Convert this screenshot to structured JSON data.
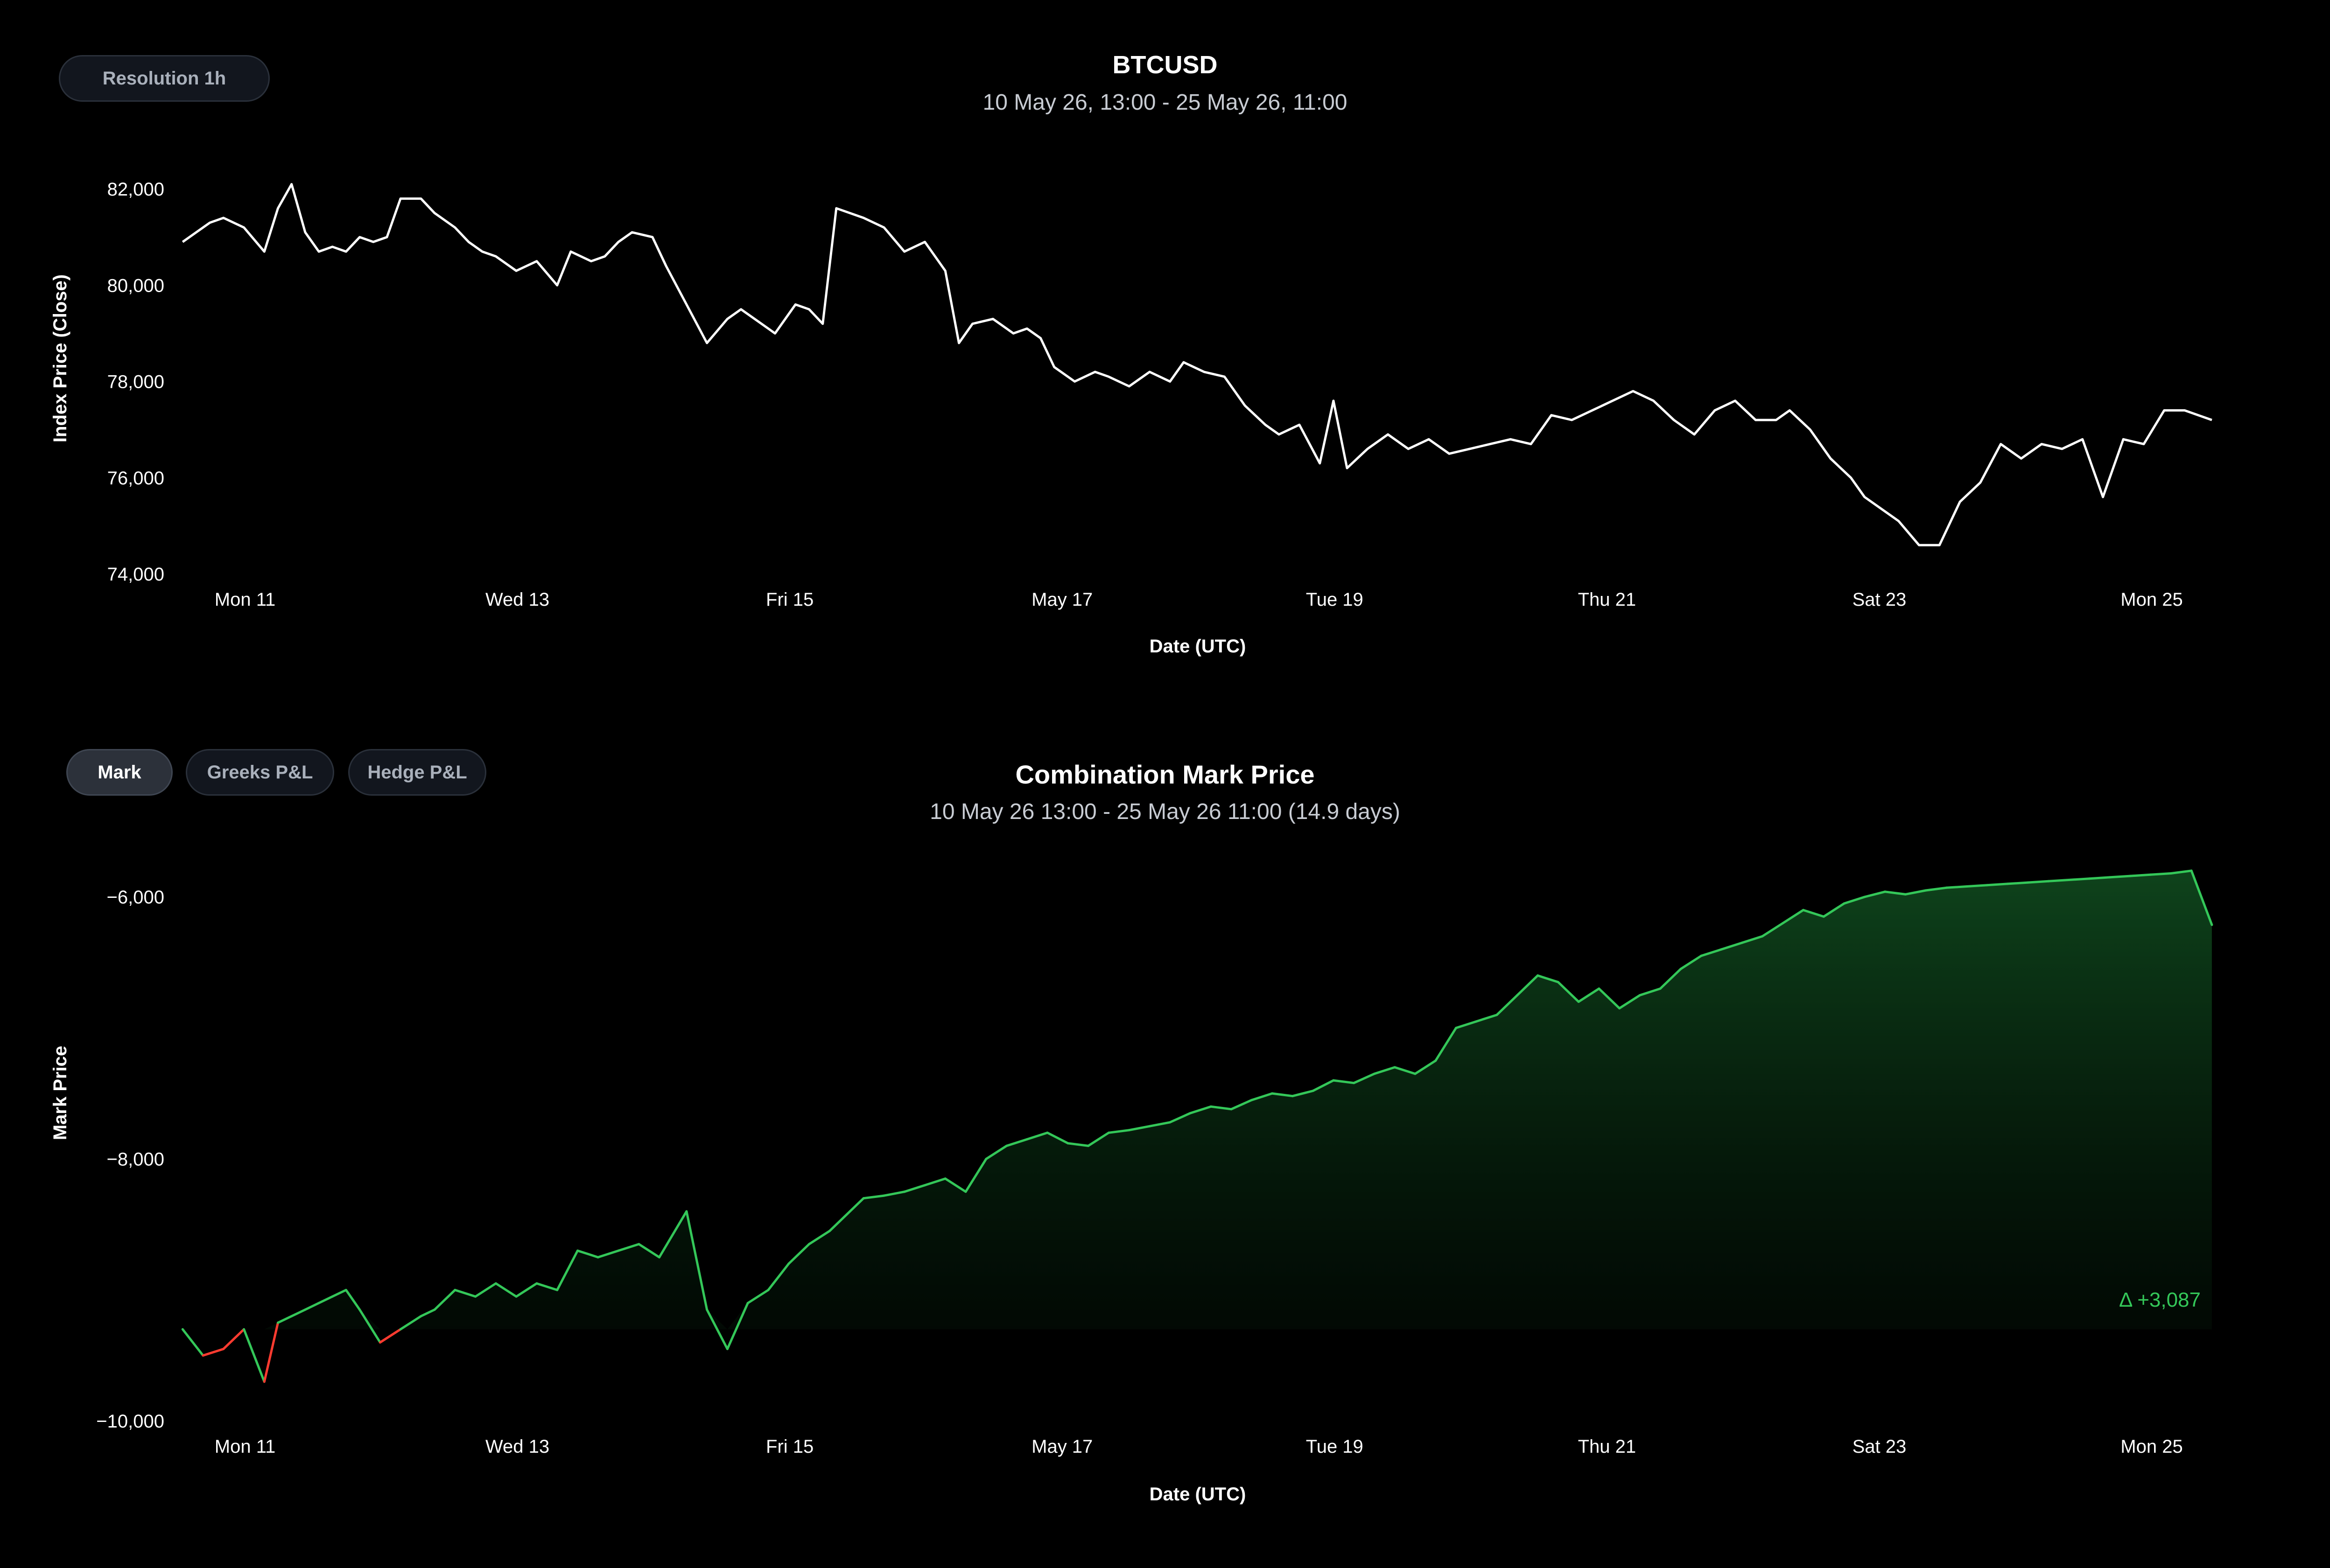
{
  "toolbar_top": {
    "resolution_label": "Resolution 1h"
  },
  "toolbar_bottom": {
    "tabs": [
      {
        "label": "Mark",
        "active": true
      },
      {
        "label": "Greeks P&L",
        "active": false
      },
      {
        "label": "Hedge P&L",
        "active": false
      }
    ]
  },
  "colors": {
    "background": "#000000",
    "price_line": "#ffffff",
    "positive": "#34c759",
    "negative": "#ff3b30",
    "axis_text": "#ffffff",
    "subtitle": "#c8ccd3"
  },
  "chart_data": [
    {
      "type": "line",
      "title": "BTCUSD",
      "subtitle": "10 May 26, 13:00 - 25 May 26, 11:00",
      "xlabel": "Date (UTC)",
      "ylabel": "Index Price (Close)",
      "x_ticks": [
        "Mon 11",
        "Wed 13",
        "Fri 15",
        "May 17",
        "Tue 19",
        "Thu 21",
        "Sat 23",
        "Mon 25"
      ],
      "y_ticks": [
        "82,000",
        "80,000",
        "78,000",
        "76,000",
        "74,000"
      ],
      "ylim": [
        74000,
        82000
      ],
      "grid": false,
      "series": [
        {
          "resolution": "1h",
          "x_days_from_may10_13h": [
            0,
            0.2,
            0.3,
            0.45,
            0.6,
            0.7,
            0.8,
            0.9,
            1.0,
            1.1,
            1.2,
            1.3,
            1.4,
            1.5,
            1.6,
            1.75,
            1.85,
            2.0,
            2.1,
            2.2,
            2.3,
            2.45,
            2.6,
            2.75,
            2.85,
            3.0,
            3.1,
            3.2,
            3.3,
            3.45,
            3.55,
            3.7,
            3.85,
            4.0,
            4.1,
            4.2,
            4.35,
            4.5,
            4.6,
            4.7,
            4.8,
            5.0,
            5.15,
            5.3,
            5.45,
            5.6,
            5.7,
            5.8,
            5.95,
            6.1,
            6.2,
            6.3,
            6.4,
            6.55,
            6.7,
            6.8,
            6.95,
            7.1,
            7.25,
            7.35,
            7.5,
            7.65,
            7.8,
            7.95,
            8.05,
            8.2,
            8.35,
            8.45,
            8.55,
            8.7,
            8.85,
            9.0,
            9.15,
            9.3,
            9.45,
            9.6,
            9.75,
            9.9,
            10.05,
            10.2,
            10.35,
            10.5,
            10.65,
            10.8,
            10.95,
            11.1,
            11.25,
            11.4,
            11.55,
            11.7,
            11.8,
            11.95,
            12.1,
            12.25,
            12.35,
            12.5,
            12.6,
            12.75,
            12.9,
            13.05,
            13.2,
            13.35,
            13.5,
            13.65,
            13.8,
            13.95,
            14.1,
            14.25,
            14.4,
            14.55,
            14.7,
            14.9
          ],
          "values": [
            80900,
            81300,
            81400,
            81200,
            80700,
            81600,
            82100,
            81100,
            80700,
            80800,
            80700,
            81000,
            80900,
            81000,
            81800,
            81800,
            81500,
            81200,
            80900,
            80700,
            80600,
            80300,
            80500,
            80000,
            80700,
            80500,
            80600,
            80900,
            81100,
            81000,
            80400,
            79600,
            78800,
            79300,
            79500,
            79300,
            79000,
            79600,
            79500,
            79200,
            81600,
            81400,
            81200,
            80700,
            80900,
            80300,
            78800,
            79200,
            79300,
            79000,
            79100,
            78900,
            78300,
            78000,
            78200,
            78100,
            77900,
            78200,
            78000,
            78400,
            78200,
            78100,
            77500,
            77100,
            76900,
            77100,
            76300,
            77600,
            76200,
            76600,
            76900,
            76600,
            76800,
            76500,
            76600,
            76700,
            76800,
            76700,
            77300,
            77200,
            77400,
            77600,
            77800,
            77600,
            77200,
            76900,
            77400,
            77600,
            77200,
            77200,
            77400,
            77000,
            76400,
            76000,
            75600,
            75300,
            75100,
            74600,
            74600,
            75500,
            75900,
            76700,
            76400,
            76700,
            76600,
            76800,
            75600,
            76800,
            76700,
            77400,
            77400,
            77200
          ],
          "color": "#ffffff"
        }
      ]
    },
    {
      "type": "area",
      "title": "Combination Mark Price",
      "subtitle": "10 May 26 13:00 - 25 May 26 11:00 (14.9 days)",
      "xlabel": "Date (UTC)",
      "ylabel": "Mark Price",
      "x_ticks": [
        "Mon 11",
        "Wed 13",
        "Fri 15",
        "May 17",
        "Tue 19",
        "Thu 21",
        "Sat 23",
        "Mon 25"
      ],
      "y_ticks": [
        "−6,000",
        "−8,000",
        "−10,000"
      ],
      "ylim": [
        -10000,
        -6000
      ],
      "baseline": -9300,
      "delta_label": "Δ +3,087",
      "grid": false,
      "series": [
        {
          "x_days_from_may10_13h": [
            0,
            0.15,
            0.3,
            0.45,
            0.6,
            0.7,
            0.8,
            0.9,
            1.0,
            1.1,
            1.2,
            1.3,
            1.45,
            1.6,
            1.75,
            1.85,
            2.0,
            2.15,
            2.3,
            2.45,
            2.6,
            2.75,
            2.9,
            3.05,
            3.2,
            3.35,
            3.5,
            3.7,
            3.85,
            4.0,
            4.15,
            4.3,
            4.45,
            4.6,
            4.75,
            4.9,
            5.0,
            5.15,
            5.3,
            5.45,
            5.6,
            5.75,
            5.9,
            6.05,
            6.2,
            6.35,
            6.5,
            6.65,
            6.8,
            6.95,
            7.1,
            7.25,
            7.4,
            7.55,
            7.7,
            7.85,
            8.0,
            8.15,
            8.3,
            8.45,
            8.6,
            8.75,
            8.9,
            9.05,
            9.2,
            9.35,
            9.5,
            9.65,
            9.8,
            9.95,
            10.1,
            10.25,
            10.4,
            10.55,
            10.7,
            10.85,
            11.0,
            11.15,
            11.3,
            11.45,
            11.6,
            11.75,
            11.9,
            12.05,
            12.2,
            12.35,
            12.5,
            12.65,
            12.8,
            12.95,
            13.1,
            13.25,
            13.4,
            13.55,
            13.7,
            13.85,
            14.0,
            14.15,
            14.3,
            14.45,
            14.6,
            14.75,
            14.9
          ],
          "values": [
            -9300,
            -9500,
            -9450,
            -9300,
            -9700,
            -9250,
            -9200,
            -9150,
            -9100,
            -9050,
            -9000,
            -9150,
            -9400,
            -9300,
            -9200,
            -9150,
            -9000,
            -9050,
            -8950,
            -9050,
            -8950,
            -9000,
            -8700,
            -8750,
            -8700,
            -8650,
            -8750,
            -8400,
            -9150,
            -9450,
            -9100,
            -9000,
            -8800,
            -8650,
            -8550,
            -8400,
            -8300,
            -8280,
            -8250,
            -8200,
            -8150,
            -8250,
            -8000,
            -7900,
            -7850,
            -7800,
            -7880,
            -7900,
            -7800,
            -7780,
            -7750,
            -7720,
            -7650,
            -7600,
            -7620,
            -7550,
            -7500,
            -7520,
            -7480,
            -7400,
            -7420,
            -7350,
            -7300,
            -7350,
            -7250,
            -7000,
            -6950,
            -6900,
            -6750,
            -6600,
            -6650,
            -6800,
            -6700,
            -6850,
            -6750,
            -6700,
            -6550,
            -6450,
            -6400,
            -6350,
            -6300,
            -6200,
            -6100,
            -6150,
            -6050,
            -6000,
            -5960,
            -5980,
            -5950,
            -5930,
            -5920,
            -5910,
            -5900,
            -5890,
            -5880,
            -5870,
            -5860,
            -5850,
            -5840,
            -5830,
            -5820,
            -5800,
            -6213
          ],
          "positive_color": "#34c759",
          "negative_color": "#ff3b30"
        }
      ]
    }
  ]
}
